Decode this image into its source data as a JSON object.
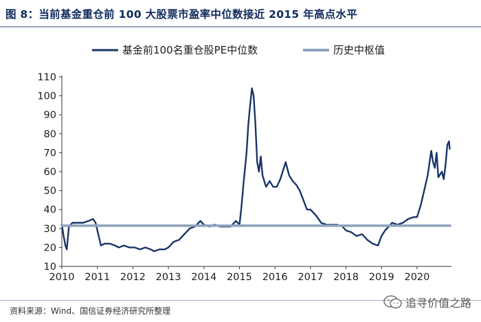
{
  "figure": {
    "title": "图 8：当前基金重仓前 100 大股票市盈率中位数接近 2015 年高点水平",
    "source": "资料来源：Wind、国信证券经济研究所整理",
    "watermark": "追寻价值之路",
    "watermark_icon": "wechat-icon"
  },
  "chart_data": {
    "type": "line",
    "title": "",
    "xlabel": "",
    "ylabel": "",
    "xlim": [
      2010,
      2021
    ],
    "ylim": [
      10,
      110
    ],
    "x_ticks": [
      "2010",
      "2011",
      "2012",
      "2013",
      "2014",
      "2015",
      "2016",
      "2017",
      "2018",
      "2019",
      "2020"
    ],
    "y_ticks": [
      "10",
      "20",
      "30",
      "40",
      "50",
      "60",
      "70",
      "80",
      "90",
      "100",
      "110"
    ],
    "legend_position": "top",
    "grid": false,
    "series": [
      {
        "name": "基金前100名重仓股PE中位数",
        "color": "#1a3468",
        "x": [
          2010.0,
          2010.05,
          2010.1,
          2010.14,
          2010.2,
          2010.3,
          2010.45,
          2010.6,
          2010.75,
          2010.88,
          2010.95,
          2011.05,
          2011.1,
          2011.2,
          2011.35,
          2011.5,
          2011.6,
          2011.75,
          2011.9,
          2012.05,
          2012.2,
          2012.35,
          2012.5,
          2012.6,
          2012.75,
          2012.9,
          2013.0,
          2013.15,
          2013.3,
          2013.45,
          2013.6,
          2013.75,
          2013.9,
          2014.0,
          2014.15,
          2014.3,
          2014.45,
          2014.6,
          2014.75,
          2014.9,
          2015.0,
          2015.05,
          2015.12,
          2015.2,
          2015.25,
          2015.3,
          2015.35,
          2015.4,
          2015.45,
          2015.5,
          2015.55,
          2015.6,
          2015.65,
          2015.75,
          2015.85,
          2015.95,
          2016.05,
          2016.15,
          2016.25,
          2016.3,
          2016.4,
          2016.5,
          2016.6,
          2016.7,
          2016.8,
          2016.9,
          2017.0,
          2017.15,
          2017.3,
          2017.45,
          2017.6,
          2017.75,
          2017.9,
          2018.0,
          2018.15,
          2018.3,
          2018.45,
          2018.6,
          2018.75,
          2018.9,
          2019.0,
          2019.1,
          2019.2,
          2019.3,
          2019.45,
          2019.6,
          2019.75,
          2019.9,
          2020.0,
          2020.1,
          2020.2,
          2020.3,
          2020.4,
          2020.45,
          2020.5,
          2020.55,
          2020.6,
          2020.7,
          2020.75,
          2020.8,
          2020.85,
          2020.9,
          2020.92
        ],
        "y": [
          32,
          26,
          21,
          19,
          31,
          33,
          33,
          33,
          34,
          35,
          33,
          25,
          21,
          22,
          22,
          21,
          20,
          21,
          20,
          20,
          19,
          20,
          19,
          18,
          19,
          19,
          20,
          23,
          24,
          27,
          30,
          31,
          34,
          32,
          31,
          32,
          31,
          31,
          31,
          34,
          32,
          40,
          55,
          70,
          85,
          95,
          104,
          100,
          85,
          65,
          60,
          68,
          58,
          52,
          55,
          52,
          52,
          56,
          62,
          65,
          58,
          55,
          53,
          50,
          45,
          40,
          40,
          37,
          33,
          32,
          32,
          32,
          31,
          29,
          28,
          26,
          27,
          24,
          22,
          21,
          26,
          29,
          31,
          33,
          32,
          33,
          35,
          36,
          36,
          42,
          50,
          58,
          71,
          65,
          62,
          70,
          57,
          60,
          56,
          63,
          74,
          76,
          72
        ]
      },
      {
        "name": "历史中枢值",
        "color": "#8fa3bc",
        "x": [
          2010.0,
          2020.93
        ],
        "y": [
          31.5,
          31.5
        ]
      }
    ]
  }
}
